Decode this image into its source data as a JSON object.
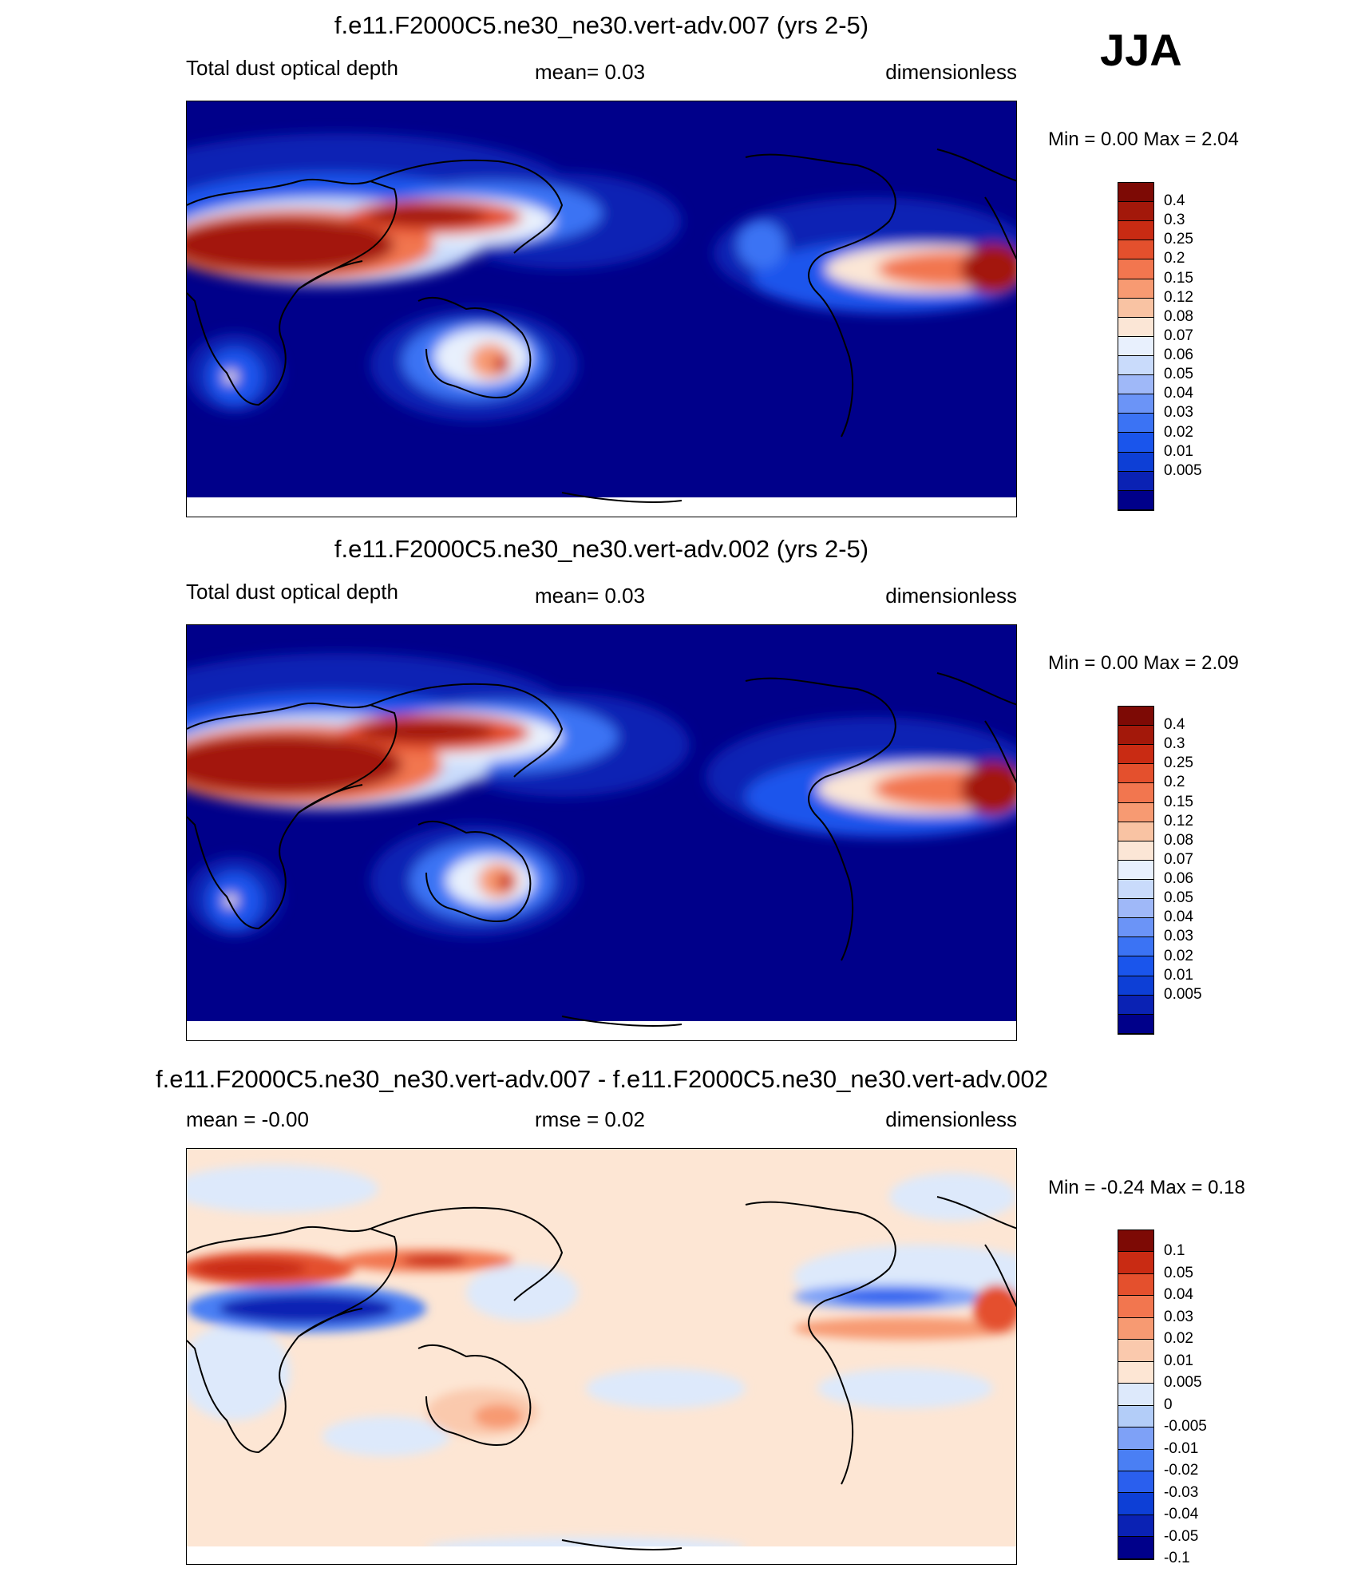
{
  "season": "JJA",
  "palette_abs": [
    "#00008a",
    "#0a22b4",
    "#0d3fd6",
    "#1a55ec",
    "#3b73f4",
    "#6b94f7",
    "#9fb8f8",
    "#c9dbfb",
    "#e8f0fd",
    "#fbe6d6",
    "#f9c3a3",
    "#f79a72",
    "#f2764f",
    "#e4502d",
    "#c92b13",
    "#a3180a",
    "#7d0a05"
  ],
  "palette_diff": [
    "#00008a",
    "#0a22b4",
    "#0d3fd6",
    "#2a5fee",
    "#4a7ff4",
    "#7ea1f7",
    "#b3cdf8",
    "#dde9fb",
    "#fde6d4",
    "#fac9ad",
    "#f79a72",
    "#f2764f",
    "#e4502d",
    "#c92b13",
    "#7d0a05"
  ],
  "panels": [
    {
      "title": "f.e11.F2000C5.ne30_ne30.vert-adv.007 (yrs 2-5)",
      "left_label": "Total dust optical depth",
      "center_label": "mean=   0.03",
      "right_label": "dimensionless",
      "minmax": "Min =    0.00 Max =    2.04",
      "colorbar_labels": [
        "0.4",
        "0.3",
        "0.25",
        "0.2",
        "0.15",
        "0.12",
        "0.08",
        "0.07",
        "0.06",
        "0.05",
        "0.04",
        "0.03",
        "0.02",
        "0.01",
        "0.005"
      ]
    },
    {
      "title": "f.e11.F2000C5.ne30_ne30.vert-adv.002 (yrs 2-5)",
      "left_label": "Total dust optical depth",
      "center_label": "mean=   0.03",
      "right_label": "dimensionless",
      "minmax": "Min =    0.00 Max =    2.09",
      "colorbar_labels": [
        "0.4",
        "0.3",
        "0.25",
        "0.2",
        "0.15",
        "0.12",
        "0.08",
        "0.07",
        "0.06",
        "0.05",
        "0.04",
        "0.03",
        "0.02",
        "0.01",
        "0.005"
      ]
    },
    {
      "title": "f.e11.F2000C5.ne30_ne30.vert-adv.007 - f.e11.F2000C5.ne30_ne30.vert-adv.002",
      "left_label": "mean =   -0.00",
      "center_label": "rmse =    0.02",
      "right_label": "dimensionless",
      "minmax": "Min =  -0.24 Max =    0.18",
      "colorbar_labels": [
        "0.1",
        "0.05",
        "0.04",
        "0.03",
        "0.02",
        "0.01",
        "0.005",
        "0",
        "-0.005",
        "-0.01",
        "-0.02",
        "-0.03",
        "-0.04",
        "-0.05",
        "-0.1"
      ]
    }
  ]
}
